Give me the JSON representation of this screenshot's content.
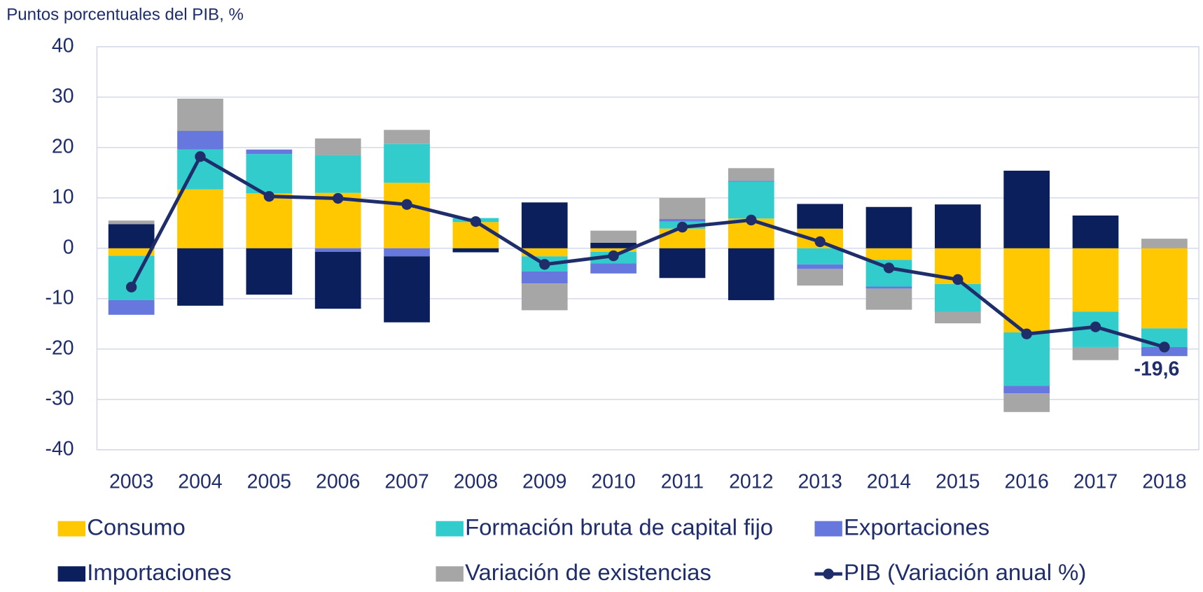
{
  "chart_data": {
    "type": "bar",
    "y_axis_label": "Puntos porcentuales del PIB, %",
    "categories": [
      "2003",
      "2004",
      "2005",
      "2006",
      "2007",
      "2008",
      "2009",
      "2010",
      "2011",
      "2012",
      "2013",
      "2014",
      "2015",
      "2016",
      "2017",
      "2018"
    ],
    "stacked": true,
    "series": [
      {
        "name": "Consumo",
        "type": "bar",
        "color": "#ffc800",
        "values": [
          -1.5,
          11.7,
          10.9,
          11.0,
          13.0,
          5.2,
          -1.6,
          -0.7,
          3.9,
          5.9,
          3.9,
          -2.3,
          -7.1,
          -16.7,
          -12.6,
          -15.9
        ]
      },
      {
        "name": "Formación bruta de capital fijo",
        "type": "bar",
        "color": "#33cccc",
        "values": [
          -8.8,
          7.9,
          7.8,
          7.5,
          7.7,
          0.8,
          -3.0,
          -2.3,
          1.4,
          7.3,
          -3.2,
          -5.3,
          -5.5,
          -10.6,
          -7.0,
          -3.7
        ]
      },
      {
        "name": "Exportaciones",
        "type": "bar",
        "color": "#6677dd",
        "values": [
          -2.9,
          3.7,
          0.9,
          -0.7,
          -1.6,
          0,
          -2.4,
          -2.0,
          0.5,
          0.2,
          -0.9,
          -0.4,
          0,
          -1.5,
          0,
          -1.8
        ]
      },
      {
        "name": "Importaciones",
        "type": "bar",
        "color": "#0a1f5c",
        "values": [
          4.8,
          -11.4,
          -9.2,
          -11.3,
          -13.1,
          -0.8,
          9.1,
          1.1,
          -5.9,
          -10.3,
          4.9,
          8.2,
          8.7,
          15.4,
          6.5,
          0
        ]
      },
      {
        "name": "Variación de existencias",
        "type": "bar",
        "color": "#a6a6a6",
        "values": [
          0.7,
          6.4,
          0,
          3.3,
          2.8,
          0,
          -5.3,
          2.4,
          4.2,
          2.5,
          -3.3,
          -4.2,
          -2.3,
          -3.7,
          -2.6,
          1.9
        ]
      },
      {
        "name": "PIB (Variación anual %)",
        "type": "line",
        "color": "#1f2d6b",
        "values": [
          -7.7,
          18.2,
          10.3,
          9.9,
          8.7,
          5.3,
          -3.2,
          -1.5,
          4.2,
          5.6,
          1.3,
          -3.9,
          -6.2,
          -17.0,
          -15.6,
          -19.6
        ],
        "value_labels": [
          null,
          null,
          null,
          null,
          null,
          null,
          null,
          null,
          null,
          null,
          null,
          null,
          null,
          null,
          null,
          "-19,6"
        ]
      }
    ],
    "ylim": [
      -40,
      40
    ],
    "yticks": [
      -40,
      -30,
      -20,
      -10,
      0,
      10,
      20,
      30,
      40
    ],
    "grid": true
  }
}
